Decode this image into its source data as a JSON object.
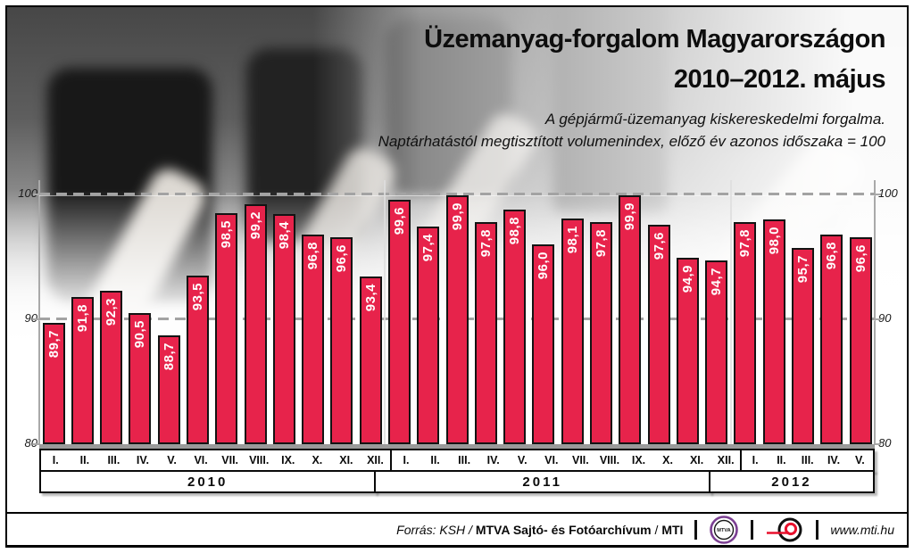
{
  "header": {
    "title_line1": "Üzemanyag-forgalom Magyarországon",
    "title_line2": "2010–2012. május",
    "subtitle_line1": "A gépjármű-üzemanyag kiskereskedelmi forgalma.",
    "subtitle_line2": "Naptárhatástól megtisztított volumenindex, előző év azonos időszaka = 100"
  },
  "chart_data": {
    "type": "bar",
    "title": "Üzemanyag-forgalom Magyarországon 2010–2012. május",
    "ylabel": "",
    "xlabel": "",
    "ylim": [
      80,
      101.5
    ],
    "yticks": [
      80,
      90,
      100
    ],
    "gridlines_dashed": [
      90,
      100
    ],
    "bar_color": "#e7234b",
    "decimal_separator": ",",
    "groups": [
      {
        "year": "2010",
        "months": [
          "I.",
          "II.",
          "III.",
          "IV.",
          "V.",
          "VI.",
          "VII.",
          "VIII.",
          "IX.",
          "X.",
          "XI.",
          "XII."
        ],
        "values": [
          89.7,
          91.8,
          92.3,
          90.5,
          88.7,
          93.5,
          98.5,
          99.2,
          98.4,
          96.8,
          96.6,
          93.4
        ]
      },
      {
        "year": "2011",
        "months": [
          "I.",
          "II.",
          "III.",
          "IV.",
          "V.",
          "VI.",
          "VII.",
          "VIII.",
          "IX.",
          "X.",
          "XI.",
          "XII."
        ],
        "values": [
          99.6,
          97.4,
          99.9,
          97.8,
          98.8,
          96.0,
          98.1,
          97.8,
          99.9,
          97.6,
          94.9,
          94.7
        ]
      },
      {
        "year": "2012",
        "months": [
          "I.",
          "II.",
          "III.",
          "IV.",
          "V."
        ],
        "values": [
          97.8,
          98.0,
          95.7,
          96.8,
          96.6
        ]
      }
    ]
  },
  "footer": {
    "source_prefix": "Forrás: KSH",
    "sep1": "/",
    "source_mtva": "MTVA Sajtó- és Fotóarchívum",
    "sep2": "/",
    "source_mti": "MTI",
    "mtva_logo_text": "MTVA",
    "website": "www.mti.hu"
  }
}
